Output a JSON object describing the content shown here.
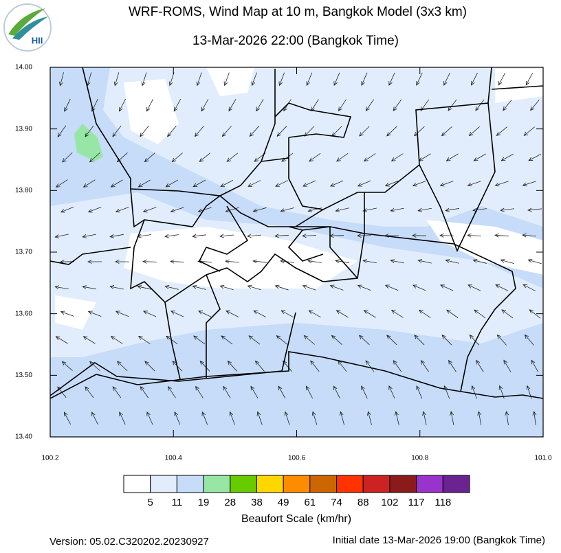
{
  "header": {
    "logo_text": "HII",
    "title": "WRF-ROMS, Wind Map at 10 m, Bangkok Model (3x3 km)",
    "subtitle": "13-Mar-2026 22:00 (Bangkok Time)"
  },
  "map": {
    "xlim": [
      100.2,
      101.0
    ],
    "ylim": [
      13.4,
      14.0
    ],
    "xticks": [
      100.2,
      100.4,
      100.6,
      100.8,
      {
        "value": 101.0,
        "label": "101.0"
      }
    ],
    "yticks": [
      {
        "value": 14.0,
        "label": "14.00"
      },
      {
        "value": 13.9,
        "label": "13.90"
      },
      {
        "value": 13.8,
        "label": "13.80"
      },
      {
        "value": 13.7,
        "label": "13.70"
      },
      {
        "value": 13.6,
        "label": "13.60"
      },
      {
        "value": 13.5,
        "label": "13.50"
      },
      {
        "value": 13.4,
        "label": "13.40"
      }
    ]
  },
  "colorbar": {
    "title": "Beaufort Scale (km/hr)",
    "colors": [
      "#ffffff",
      "#e1edfc",
      "#c6dcf8",
      "#98e6a6",
      "#66cc00",
      "#ffd700",
      "#ff8c00",
      "#cc6600",
      "#ff3300",
      "#cc2222",
      "#8b1a1a",
      "#9933cc",
      "#6a2390"
    ],
    "labels": [
      5,
      11,
      19,
      28,
      38,
      49,
      61,
      74,
      88,
      102,
      117,
      118
    ]
  },
  "footer": {
    "version": "Version: 05.02.C320202.20230927",
    "initial": "Initial date 13-Mar-2026 19:00 (Bangkok Time)"
  }
}
